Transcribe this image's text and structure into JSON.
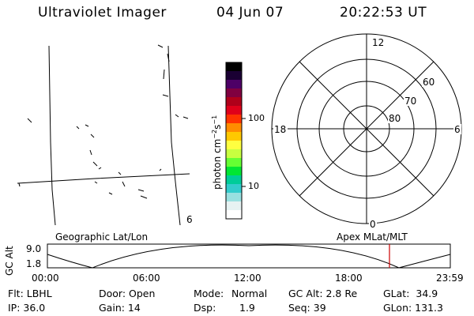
{
  "header": {
    "instrument": "Ultraviolet Imager",
    "date": "04 Jun 07",
    "time": "20:22:53 UT"
  },
  "map": {
    "corner_label": "6"
  },
  "colorbar": {
    "unit": "photon cm^-2 s^-1",
    "ticks": [
      "100",
      "10"
    ],
    "colors": [
      "#000000",
      "#1a0033",
      "#4d0066",
      "#800040",
      "#b0001a",
      "#e0001a",
      "#ff3300",
      "#ff8c00",
      "#ffc800",
      "#ffff40",
      "#c8ff40",
      "#66ff33",
      "#00e633",
      "#00cc99",
      "#33cccc",
      "#99e0e0",
      "#e6f2f2",
      "#ffffff"
    ]
  },
  "polar": {
    "hour_labels": {
      "top": "12",
      "left": "18",
      "right": "6",
      "bottom": "0"
    },
    "lat_labels": [
      "60",
      "70",
      "80"
    ]
  },
  "timeline": {
    "left_label": "Geographic Lat/Lon",
    "right_label": "Apex MLat/MLT",
    "axis_label": "GC Alt",
    "y_ticks": [
      "9.0",
      "1.8"
    ],
    "x_ticks": [
      "00:00",
      "06:00",
      "12:00",
      "18:00",
      "23:59"
    ],
    "marker_color": "#cc0000"
  },
  "info": {
    "filter": "Flt: LBHL",
    "ip": "IP: 36.0",
    "door": "Door: Open",
    "gain": "Gain: 14",
    "mode_label": "Mode:",
    "mode_value": "Normal",
    "dsp_label": "Dsp:",
    "dsp_value": "1.9",
    "gc_alt": "GC Alt: 2.8 Re",
    "seq": "Seq: 39",
    "glat": "GLat:  34.9",
    "glon": "GLon: 131.3"
  }
}
